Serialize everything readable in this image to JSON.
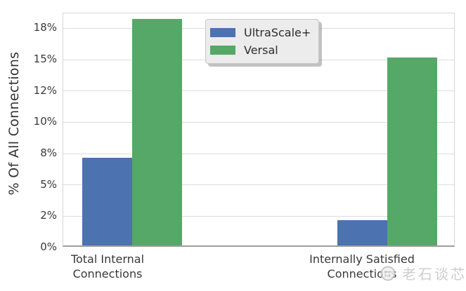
{
  "figure": {
    "watermark": {
      "text": "老石谈芯",
      "logo": "face-logo-icon"
    }
  },
  "chart_data": {
    "type": "bar",
    "title": "",
    "xlabel": "",
    "ylabel": "% Of All Connections",
    "categories": [
      "Total Internal\nConnections",
      "Internally Satisfied\nConnections"
    ],
    "series": [
      {
        "name": "UltraScale+",
        "color": "#4C72B0",
        "values": [
          7.0,
          2.0
        ]
      },
      {
        "name": "Versal",
        "color": "#55A868",
        "values": [
          18.1,
          15.0
        ]
      }
    ],
    "ylim": [
      0,
      18.7
    ],
    "yticks": [
      {
        "value": 0,
        "label": "0%"
      },
      {
        "value": 2.5,
        "label": "2%"
      },
      {
        "value": 5,
        "label": "5%"
      },
      {
        "value": 7.5,
        "label": "8%"
      },
      {
        "value": 10,
        "label": "10%"
      },
      {
        "value": 12.5,
        "label": "12%"
      },
      {
        "value": 15,
        "label": "15%"
      },
      {
        "value": 17.5,
        "label": "18%"
      }
    ],
    "grid": true,
    "legend_position": "upper-left-inside",
    "bar_unit": "percent"
  }
}
